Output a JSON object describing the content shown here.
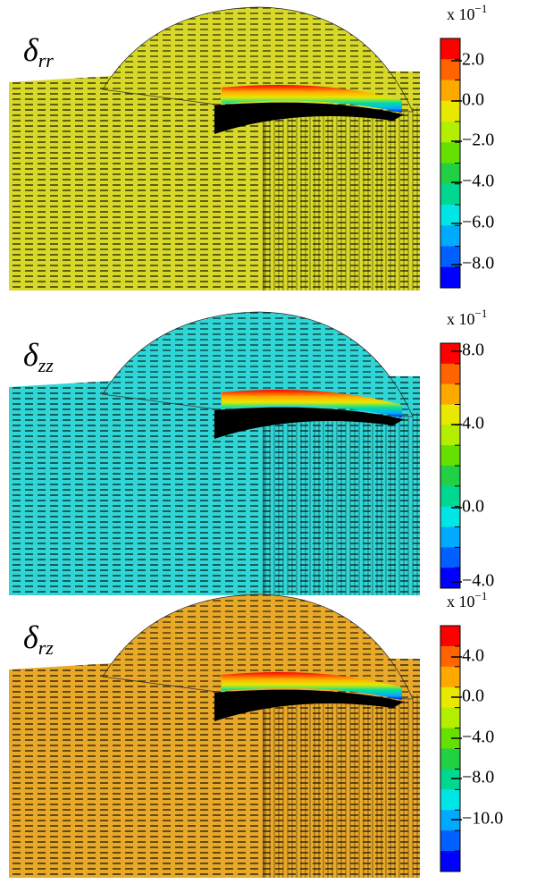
{
  "colorbar_colors": [
    "#ff0000",
    "#ff6400",
    "#ffa800",
    "#e8e800",
    "#b4ee00",
    "#66e000",
    "#22d044",
    "#00d892",
    "#00e6e6",
    "#00aaff",
    "#0060ff",
    "#0000ff"
  ],
  "panels": [
    {
      "symbol": "δ",
      "subscript": "rr",
      "scale": "x 10",
      "exponent": "−1",
      "fill": "#d8d828",
      "tick_labels": [
        "2.0",
        "0.0",
        "−2.0",
        "−4.0",
        "−6.0",
        "−8.0"
      ]
    },
    {
      "symbol": "δ",
      "subscript": "zz",
      "scale": "x 10",
      "exponent": "−1",
      "fill": "#30d6d6",
      "tick_labels": [
        "8.0",
        "4.0",
        "0.0",
        "−4.0"
      ]
    },
    {
      "symbol": "δ",
      "subscript": "rz",
      "scale": "x 10",
      "exponent": "−1",
      "fill": "#e8a828",
      "tick_labels": [
        "4.0",
        "0.0",
        "−4.0",
        "−8.0",
        "−10.0"
      ]
    }
  ]
}
